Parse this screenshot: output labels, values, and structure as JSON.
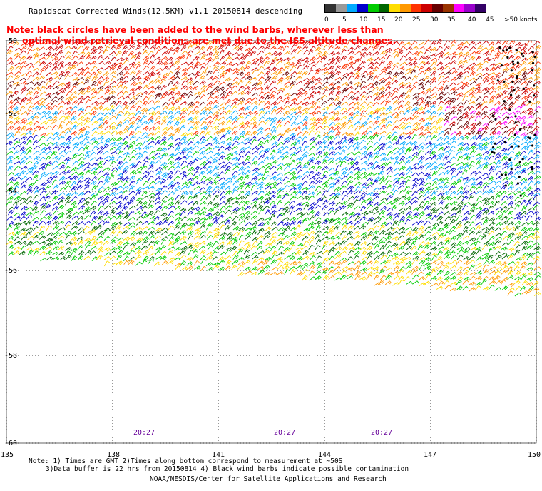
{
  "title": "Rapidscat Corrected Winds(12.5KM) v1.1 20150814 descending",
  "note": {
    "line1": "Note: black circles have been added to the wind barbs, wherever less than",
    "line2": "optimal wind retrieval conditions are met due to the ISS altitude changes."
  },
  "legend": {
    "units": "knots",
    "colors": [
      "#333333",
      "#999999",
      "#00aaff",
      "#0000cc",
      "#00cc00",
      "#006600",
      "#ffdd00",
      "#ff9900",
      "#ff3300",
      "#cc0000",
      "#660000",
      "#993300",
      "#ff00ff",
      "#9900cc",
      "#330066"
    ],
    "labels": [
      "0",
      "5",
      "10",
      "15",
      "20",
      "25",
      "30",
      "35",
      "40",
      "45",
      ">50 knots"
    ]
  },
  "map": {
    "lat_labels": [
      "-50",
      "-52",
      "-54",
      "-56",
      "-58",
      "-60"
    ],
    "lon_labels": [
      "135",
      "138",
      "141",
      "144",
      "147",
      "150"
    ],
    "time_labels": [
      "20:27",
      "20:27",
      "20:27"
    ],
    "time_color": "#660099"
  },
  "footer": {
    "line1": "Note: 1) Times are GMT 2)Times along bottom correspond to measurement at ~50S",
    "line2": "3)Data buffer is 22 hrs from 20150814 4) Black wind barbs indicate possible contamination",
    "line3": "NOAA/NESDIS/Center for Satellite Applications and Research"
  }
}
